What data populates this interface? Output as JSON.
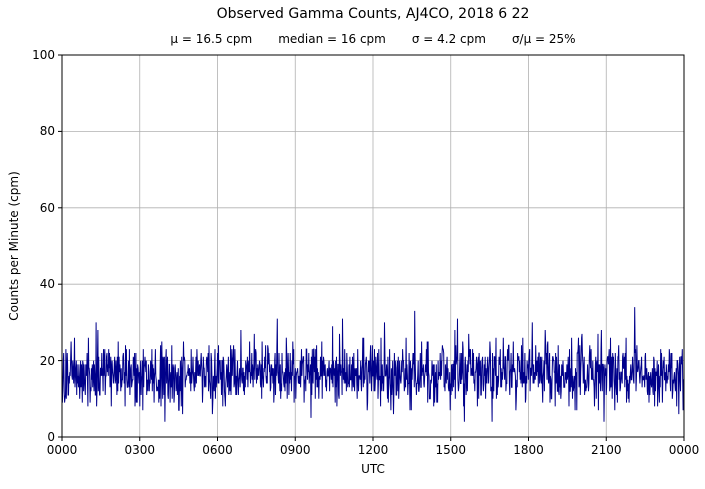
{
  "title": "Observed Gamma Counts, AJ4CO, 2018 6 22",
  "stats": {
    "mu": "μ = 16.5 cpm",
    "median": "median = 16 cpm",
    "sigma": "σ = 4.2 cpm",
    "ratio": "σ/μ = 25%"
  },
  "chart_data": {
    "type": "line",
    "title": "Observed Gamma Counts, AJ4CO, 2018 6 22",
    "subtitle": "μ = 16.5 cpm    median = 16 cpm    σ = 4.2 cpm    σ/μ = 25%",
    "xlabel": "UTC",
    "ylabel": "Counts per Minute (cpm)",
    "ylim": [
      0,
      100
    ],
    "x_range_hours": [
      0,
      24
    ],
    "x_tick_labels": [
      "0000",
      "0300",
      "0600",
      "0900",
      "1200",
      "1500",
      "1800",
      "2100",
      "0000"
    ],
    "y_tick_values": [
      0,
      20,
      40,
      60,
      80,
      100
    ],
    "y_tick_labels": [
      "0",
      "20",
      "40",
      "60",
      "80",
      "100"
    ],
    "grid": true,
    "grid_color": "#b0b0b0",
    "line_color": "#00008B",
    "background": "#ffffff",
    "legend": "none",
    "series": [
      {
        "name": "observed gamma counts",
        "n_points": 1440,
        "mean": 16.5,
        "median": 16,
        "sigma": 4.2,
        "observed_min": 4,
        "observed_max": 34,
        "integer_counts": true,
        "seed": 20180622,
        "note": "one-minute gamma count samples forming a dense noise band around the mean"
      }
    ],
    "notable_points": [
      {
        "x_frac": 0.055,
        "value": 30
      },
      {
        "x_frac": 0.346,
        "value": 31
      },
      {
        "x_frac": 0.4,
        "value": 5
      },
      {
        "x_frac": 0.435,
        "value": 29
      },
      {
        "x_frac": 0.567,
        "value": 33
      },
      {
        "x_frac": 0.636,
        "value": 31
      },
      {
        "x_frac": 0.921,
        "value": 34
      }
    ]
  }
}
